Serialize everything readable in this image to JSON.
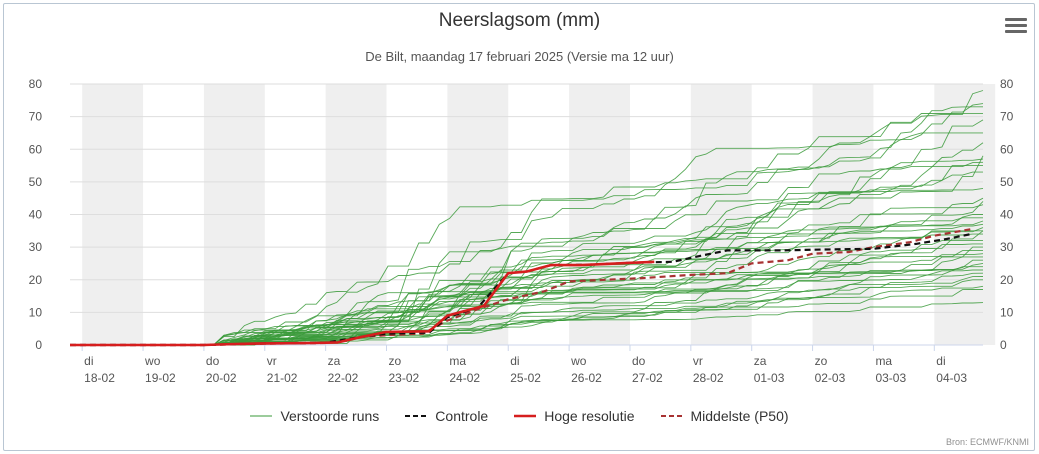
{
  "title": "Neerslagsom (mm)",
  "subtitle": "De Bilt, maandag 17 februari 2025 (Versie ma 12 uur)",
  "credit": "Bron: ECMWF/KNMI",
  "menu_icon": "hamburger-menu-icon",
  "chart_data": {
    "type": "line",
    "title": "Neerslagsom (mm)",
    "ylim": [
      0,
      80
    ],
    "yticks": [
      0,
      10,
      20,
      30,
      40,
      50,
      60,
      70,
      80
    ],
    "x_unit": "days since 18-02",
    "xlim": [
      -0.2,
      14.8
    ],
    "shaded_days": [
      0,
      2,
      4,
      6,
      8,
      10,
      12,
      14
    ],
    "x_categories": [
      {
        "day": "di",
        "date": "18-02"
      },
      {
        "day": "wo",
        "date": "19-02"
      },
      {
        "day": "do",
        "date": "20-02"
      },
      {
        "day": "vr",
        "date": "21-02"
      },
      {
        "day": "za",
        "date": "22-02"
      },
      {
        "day": "zo",
        "date": "23-02"
      },
      {
        "day": "ma",
        "date": "24-02"
      },
      {
        "day": "di",
        "date": "25-02"
      },
      {
        "day": "wo",
        "date": "26-02"
      },
      {
        "day": "do",
        "date": "27-02"
      },
      {
        "day": "vr",
        "date": "28-02"
      },
      {
        "day": "za",
        "date": "01-03"
      },
      {
        "day": "zo",
        "date": "02-03"
      },
      {
        "day": "ma",
        "date": "03-03"
      },
      {
        "day": "di",
        "date": "04-03"
      }
    ],
    "series": [
      {
        "name": "Hoge resolutie",
        "color": "#d61e1e",
        "style": "solid",
        "points": [
          [
            -0.2,
            0
          ],
          [
            2.0,
            0
          ],
          [
            2.5,
            0.3
          ],
          [
            3.0,
            0.5
          ],
          [
            3.8,
            0.6
          ],
          [
            4.2,
            0.8
          ],
          [
            4.6,
            2.5
          ],
          [
            5.0,
            4.0
          ],
          [
            5.7,
            4.2
          ],
          [
            6.0,
            9.0
          ],
          [
            6.6,
            12.0
          ],
          [
            7.0,
            22.0
          ],
          [
            7.3,
            22.5
          ],
          [
            7.7,
            24.5
          ],
          [
            8.2,
            24.5
          ],
          [
            8.8,
            25.0
          ],
          [
            9.4,
            25.5
          ]
        ]
      },
      {
        "name": "Controle",
        "color": "#111111",
        "style": "dashed",
        "points": [
          [
            -0.2,
            0
          ],
          [
            2.0,
            0
          ],
          [
            3.0,
            0.5
          ],
          [
            4.0,
            0.7
          ],
          [
            4.6,
            2.5
          ],
          [
            5.0,
            3.5
          ],
          [
            5.7,
            3.8
          ],
          [
            6.0,
            8.5
          ],
          [
            6.5,
            11.5
          ],
          [
            7.0,
            22.0
          ],
          [
            7.3,
            22.5
          ],
          [
            7.7,
            24.5
          ],
          [
            8.3,
            24.6
          ],
          [
            9.0,
            25.2
          ],
          [
            9.7,
            25.5
          ],
          [
            10.2,
            27.5
          ],
          [
            10.6,
            29.0
          ],
          [
            11.5,
            29.0
          ],
          [
            12.0,
            29.2
          ],
          [
            13.0,
            29.5
          ],
          [
            13.7,
            31.0
          ],
          [
            14.2,
            32.5
          ],
          [
            14.6,
            34.0
          ]
        ]
      },
      {
        "name": "Middelste (P50)",
        "color": "#a83232",
        "style": "dashed",
        "points": [
          [
            -0.2,
            0
          ],
          [
            2.0,
            0
          ],
          [
            3.0,
            0.4
          ],
          [
            4.0,
            0.6
          ],
          [
            4.6,
            2.5
          ],
          [
            5.0,
            3.0
          ],
          [
            5.6,
            3.5
          ],
          [
            6.0,
            7.5
          ],
          [
            6.5,
            11.0
          ],
          [
            7.0,
            14.0
          ],
          [
            7.6,
            16.5
          ],
          [
            8.0,
            19.5
          ],
          [
            8.6,
            20.0
          ],
          [
            9.2,
            20.5
          ],
          [
            10.0,
            21.5
          ],
          [
            10.6,
            22.0
          ],
          [
            11.0,
            25.0
          ],
          [
            11.6,
            26.0
          ],
          [
            12.0,
            28.0
          ],
          [
            12.6,
            28.5
          ],
          [
            13.0,
            30.0
          ],
          [
            13.6,
            31.5
          ],
          [
            14.0,
            33.5
          ],
          [
            14.6,
            35.5
          ]
        ]
      }
    ],
    "ensemble_name": "Verstoorde runs",
    "ensemble_color": "#3a9a3a",
    "ensemble_finals": [
      78,
      74,
      73,
      69,
      65,
      58,
      57,
      56,
      55,
      53,
      45,
      44,
      43,
      40,
      38,
      37,
      36,
      35,
      34,
      32,
      31,
      30,
      29,
      28,
      27,
      26,
      25,
      24,
      23,
      22,
      21,
      20,
      18,
      17,
      13,
      35,
      39,
      48,
      62,
      71
    ]
  },
  "legend": [
    {
      "label": "Verstoorde runs",
      "color": "#3a9a3a",
      "style": "thin"
    },
    {
      "label": "Controle",
      "color": "#111111",
      "style": "dashed"
    },
    {
      "label": "Hoge resolutie",
      "color": "#d61e1e",
      "style": "solid"
    },
    {
      "label": "Middelste (P50)",
      "color": "#a83232",
      "style": "dashed"
    }
  ]
}
